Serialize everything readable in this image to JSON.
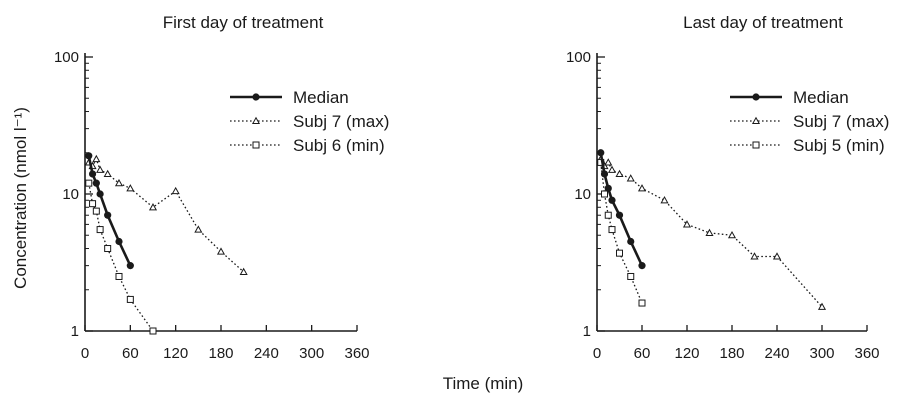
{
  "figure": {
    "ylabel": "Concentration (nmol l⁻¹)",
    "xlabel": "Time (min)"
  },
  "chart_data": [
    {
      "type": "line",
      "title": "First day of treatment",
      "xlabel": "Time (min)",
      "ylabel": "Concentration (nmol l⁻¹)",
      "yscale": "log",
      "xlim": [
        0,
        360
      ],
      "ylim": [
        1,
        100
      ],
      "xticks": [
        "0",
        "60",
        "120",
        "180",
        "240",
        "300",
        "360"
      ],
      "yticks": [
        "1",
        "10",
        "100"
      ],
      "legend_position": "upper-right",
      "series": [
        {
          "name": "Median",
          "style": "solid-filled-circle",
          "x": [
            5,
            10,
            15,
            20,
            30,
            45,
            60
          ],
          "y": [
            19,
            14,
            12,
            10,
            7,
            4.5,
            3
          ]
        },
        {
          "name": "Subj 7 (max)",
          "style": "dotted-triangle",
          "x": [
            5,
            10,
            15,
            20,
            30,
            45,
            60,
            90,
            120,
            150,
            180,
            210
          ],
          "y": [
            17,
            16,
            18,
            15,
            14,
            12,
            11,
            8,
            10.5,
            5.5,
            3.8,
            2.7
          ]
        },
        {
          "name": "Subj 6 (min)",
          "style": "dotted-open-square",
          "x": [
            5,
            10,
            15,
            20,
            30,
            45,
            60,
            90
          ],
          "y": [
            12,
            8.5,
            7.5,
            5.5,
            4.0,
            2.5,
            1.7,
            1.0
          ]
        }
      ]
    },
    {
      "type": "line",
      "title": "Last day of treatment",
      "xlabel": "Time (min)",
      "ylabel": "",
      "yscale": "log",
      "xlim": [
        0,
        360
      ],
      "ylim": [
        1,
        100
      ],
      "xticks": [
        "0",
        "60",
        "120",
        "180",
        "240",
        "300",
        "360"
      ],
      "yticks": [
        "1",
        "10",
        "100"
      ],
      "legend_position": "upper-right",
      "series": [
        {
          "name": "Median",
          "style": "solid-filled-circle",
          "x": [
            5,
            10,
            15,
            20,
            30,
            45,
            60
          ],
          "y": [
            20,
            14,
            11,
            9,
            7,
            4.5,
            3
          ]
        },
        {
          "name": "Subj 7 (max)",
          "style": "dotted-triangle",
          "x": [
            5,
            10,
            15,
            20,
            30,
            45,
            60,
            90,
            120,
            150,
            180,
            210,
            240,
            300
          ],
          "y": [
            18,
            16,
            17,
            15,
            14,
            13,
            11,
            9,
            6,
            5.2,
            5,
            3.5,
            3.5,
            1.5
          ]
        },
        {
          "name": "Subj 5 (min)",
          "style": "dotted-open-square",
          "x": [
            5,
            10,
            15,
            20,
            30,
            45,
            60
          ],
          "y": [
            17,
            10,
            7,
            5.5,
            3.7,
            2.5,
            1.6
          ]
        }
      ]
    }
  ]
}
